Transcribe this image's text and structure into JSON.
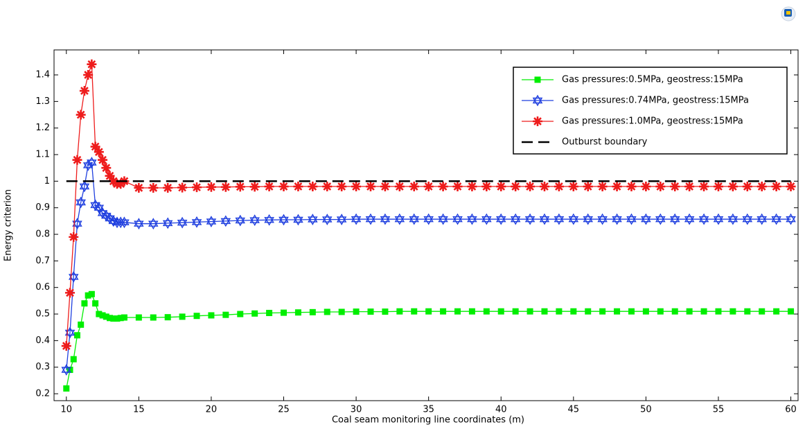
{
  "chart_data": {
    "type": "line",
    "xlabel": "Coal seam monitoring line coordinates (m)",
    "ylabel": "Energy criterion",
    "xlim": [
      9.15,
      60.5
    ],
    "ylim": [
      0.174,
      1.494
    ],
    "xticks": [
      10,
      15,
      20,
      25,
      30,
      35,
      40,
      45,
      50,
      55,
      60
    ],
    "yticks": [
      0.2,
      0.3,
      0.4,
      0.5,
      0.6,
      0.7,
      0.8,
      0.9,
      1,
      1.1,
      1.2,
      1.3,
      1.4
    ],
    "legend": "upper right",
    "x": [
      10,
      10.25,
      10.5,
      10.75,
      11,
      11.25,
      11.5,
      11.75,
      12,
      12.25,
      12.5,
      12.75,
      13,
      13.25,
      13.5,
      13.75,
      14,
      15,
      16,
      17,
      18,
      19,
      20,
      21,
      22,
      23,
      24,
      25,
      26,
      27,
      28,
      29,
      30,
      31,
      32,
      33,
      34,
      35,
      36,
      37,
      38,
      39,
      40,
      41,
      42,
      43,
      44,
      45,
      46,
      47,
      48,
      49,
      50,
      51,
      52,
      53,
      54,
      55,
      56,
      57,
      58,
      59,
      60
    ],
    "series": [
      {
        "name": "Gas pressures:0.5MPa, geostress:15MPa",
        "color": "#00ee00",
        "marker": "square",
        "values": [
          0.22,
          0.29,
          0.33,
          0.42,
          0.46,
          0.54,
          0.57,
          0.575,
          0.54,
          0.5,
          0.495,
          0.49,
          0.485,
          0.483,
          0.483,
          0.485,
          0.487,
          0.487,
          0.487,
          0.488,
          0.49,
          0.493,
          0.495,
          0.497,
          0.5,
          0.502,
          0.504,
          0.505,
          0.506,
          0.507,
          0.508,
          0.508,
          0.509,
          0.509,
          0.509,
          0.51,
          0.51,
          0.51,
          0.51,
          0.51,
          0.51,
          0.51,
          0.51,
          0.51,
          0.51,
          0.51,
          0.51,
          0.51,
          0.51,
          0.51,
          0.51,
          0.51,
          0.51,
          0.51,
          0.51,
          0.51,
          0.51,
          0.51,
          0.51,
          0.51,
          0.51,
          0.51,
          0.51
        ]
      },
      {
        "name": "Gas pressures:0.74MPa, geostress:15MPa",
        "color": "#1f3fdf",
        "marker": "hexagram",
        "values": [
          0.29,
          0.43,
          0.64,
          0.84,
          0.92,
          0.98,
          1.06,
          1.07,
          0.91,
          0.9,
          0.88,
          0.87,
          0.86,
          0.85,
          0.845,
          0.845,
          0.845,
          0.84,
          0.84,
          0.842,
          0.844,
          0.846,
          0.848,
          0.85,
          0.852,
          0.853,
          0.854,
          0.855,
          0.855,
          0.856,
          0.856,
          0.856,
          0.857,
          0.857,
          0.857,
          0.857,
          0.857,
          0.857,
          0.857,
          0.857,
          0.857,
          0.857,
          0.857,
          0.857,
          0.857,
          0.857,
          0.857,
          0.857,
          0.857,
          0.857,
          0.857,
          0.857,
          0.857,
          0.857,
          0.857,
          0.857,
          0.857,
          0.857,
          0.857,
          0.857,
          0.857,
          0.857,
          0.857
        ]
      },
      {
        "name": "Gas pressures:1.0MPa, geostress:15MPa",
        "color": "#ee1c1c",
        "marker": "asterisk",
        "values": [
          0.38,
          0.58,
          0.79,
          1.08,
          1.25,
          1.34,
          1.4,
          1.44,
          1.13,
          1.11,
          1.08,
          1.05,
          1.02,
          1.0,
          0.99,
          0.99,
          1.0,
          0.975,
          0.975,
          0.975,
          0.976,
          0.977,
          0.978,
          0.978,
          0.979,
          0.979,
          0.98,
          0.98,
          0.98,
          0.98,
          0.98,
          0.98,
          0.98,
          0.98,
          0.98,
          0.98,
          0.98,
          0.98,
          0.98,
          0.98,
          0.98,
          0.98,
          0.98,
          0.98,
          0.98,
          0.98,
          0.98,
          0.98,
          0.98,
          0.98,
          0.98,
          0.98,
          0.98,
          0.98,
          0.98,
          0.98,
          0.98,
          0.98,
          0.98,
          0.98,
          0.98,
          0.98,
          0.98
        ]
      },
      {
        "name": "Outburst boundary",
        "color": "#000000",
        "marker": "dash",
        "x": [
          10,
          60
        ],
        "values": [
          1,
          1
        ]
      }
    ]
  }
}
